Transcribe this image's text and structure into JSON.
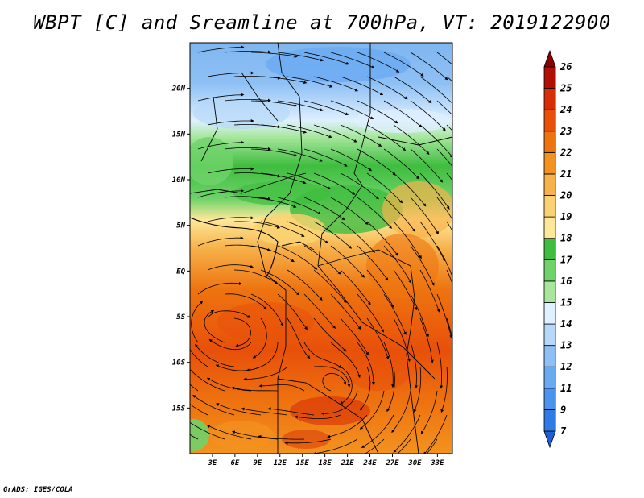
{
  "title": "WBPT [C] and Sreamline at 700hPa, VT: 2019122900",
  "credit": "GrADS: IGES/COLA",
  "map": {
    "lat_range": [
      -20,
      25
    ],
    "lon_range": [
      0,
      35
    ],
    "lat_ticks": [
      {
        "value": 20,
        "label": "20N"
      },
      {
        "value": 15,
        "label": "15N"
      },
      {
        "value": 10,
        "label": "10N"
      },
      {
        "value": 5,
        "label": "5N"
      },
      {
        "value": 0,
        "label": "EQ"
      },
      {
        "value": -5,
        "label": "5S"
      },
      {
        "value": -10,
        "label": "10S"
      },
      {
        "value": -15,
        "label": "15S"
      }
    ],
    "lon_ticks": [
      {
        "value": 3,
        "label": "3E"
      },
      {
        "value": 6,
        "label": "6E"
      },
      {
        "value": 9,
        "label": "9E"
      },
      {
        "value": 12,
        "label": "12E"
      },
      {
        "value": 15,
        "label": "15E"
      },
      {
        "value": 18,
        "label": "18E"
      },
      {
        "value": 21,
        "label": "21E"
      },
      {
        "value": 24,
        "label": "24E"
      },
      {
        "value": 27,
        "label": "27E"
      },
      {
        "value": 30,
        "label": "30E"
      },
      {
        "value": 33,
        "label": "33E"
      }
    ]
  },
  "colorbar": {
    "labels": [
      "7",
      "9",
      "11",
      "12",
      "13",
      "14",
      "15",
      "16",
      "17",
      "18",
      "19",
      "20",
      "21",
      "22",
      "23",
      "24",
      "25",
      "26"
    ],
    "colors": [
      "#1f5fd6",
      "#2e7be6",
      "#4b94ee",
      "#6aaaf2",
      "#8fc0f5",
      "#b7d8f8",
      "#dff0ff",
      "#a6e79c",
      "#6fd36a",
      "#3ebd3e",
      "#fde89a",
      "#fbd271",
      "#f7b24a",
      "#f39220",
      "#ee7410",
      "#e8500a",
      "#d62f06",
      "#b20f04",
      "#8c0000"
    ]
  }
}
